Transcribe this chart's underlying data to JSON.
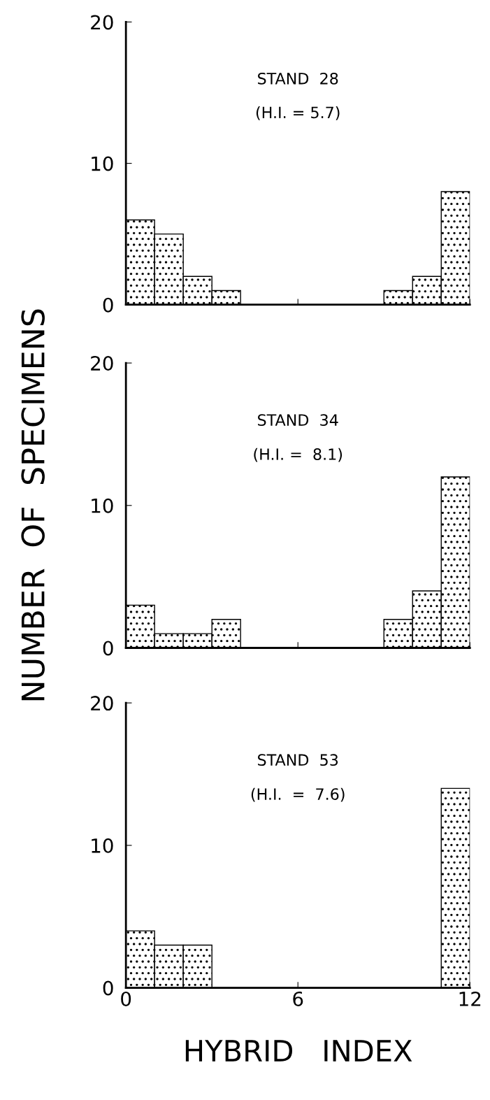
{
  "chart_data": [
    {
      "type": "histogram",
      "title": "STAND  28",
      "subtitle": "(H.I. = 5.7)",
      "bins": [
        0,
        1,
        2,
        3,
        4,
        5,
        6,
        7,
        8,
        9,
        10,
        11,
        12
      ],
      "values": [
        6,
        5,
        2,
        1,
        0,
        0,
        0,
        0,
        0,
        1,
        2,
        8
      ],
      "color": "#000000",
      "xlim": [
        0,
        12
      ],
      "xticks": [
        0,
        6,
        12
      ],
      "ylim": [
        0,
        20
      ],
      "yticks": [
        0,
        10,
        20
      ],
      "tick_labels": "y",
      "grid": false,
      "legend": false
    },
    {
      "type": "histogram",
      "title": "STAND  34",
      "subtitle": "(H.I. =  8.1)",
      "ylabel": "NUMBER  OF  SPECIMENS",
      "bins": [
        0,
        1,
        2,
        3,
        4,
        5,
        6,
        7,
        8,
        9,
        10,
        11,
        12
      ],
      "values": [
        3,
        1,
        1,
        2,
        0,
        0,
        0,
        0,
        0,
        2,
        4,
        12
      ],
      "color": "#000000",
      "xlim": [
        0,
        12
      ],
      "xticks": [
        0,
        6,
        12
      ],
      "ylim": [
        0,
        20
      ],
      "yticks": [
        0,
        10,
        20
      ],
      "tick_labels": "y",
      "grid": false,
      "legend": false
    },
    {
      "type": "histogram",
      "title": "STAND  53",
      "subtitle": "(H.I.  =  7.6)",
      "xlabel": "HYBRID   INDEX",
      "bins": [
        0,
        1,
        2,
        3,
        4,
        5,
        6,
        7,
        8,
        9,
        10,
        11,
        12
      ],
      "values": [
        4,
        3,
        3,
        0,
        0,
        0,
        0,
        0,
        0,
        0,
        0,
        14
      ],
      "color": "#000000",
      "xlim": [
        0,
        12
      ],
      "xticks": [
        0,
        6,
        12
      ],
      "ylim": [
        0,
        20
      ],
      "yticks": [
        0,
        10,
        20
      ],
      "grid": false,
      "legend": false
    }
  ]
}
